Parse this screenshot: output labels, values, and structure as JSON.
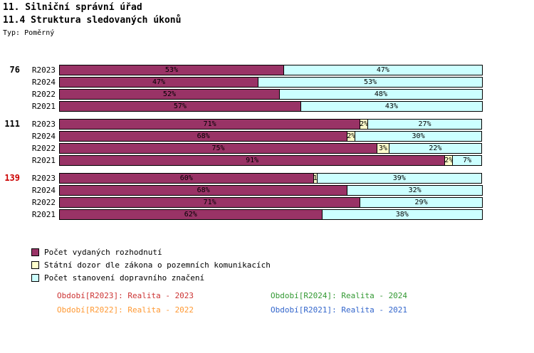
{
  "page": {
    "background": "#FFFFFF"
  },
  "chart_data": {
    "type": "bar",
    "orientation": "horizontal",
    "stacked": true,
    "unit": "%",
    "title": "11. Silniční správní úřad",
    "subtitle": "11.4 Struktura sledovaných úkonů",
    "note": "Typ: Poměrný",
    "xlim": [
      0,
      100
    ],
    "grid": false,
    "legend_position": "bottom-left",
    "series": [
      {
        "name": "Počet vydaných rozhodnutí",
        "color": "#993366"
      },
      {
        "name": "Státní dozor dle zákona o pozemních komunikacích",
        "color": "#FFFFCC"
      },
      {
        "name": "Počet stanovení dopravního značení",
        "color": "#CCFFFF"
      }
    ],
    "groups": [
      {
        "label": "76",
        "label_color": "#000000",
        "rows": [
          {
            "period": "R2023",
            "values": [
              53,
              0,
              47
            ],
            "labels": [
              "53%",
              "",
              "47%"
            ]
          },
          {
            "period": "R2024",
            "values": [
              47,
              0,
              53
            ],
            "labels": [
              "47%",
              "",
              "53%"
            ]
          },
          {
            "period": "R2022",
            "values": [
              52,
              0,
              48
            ],
            "labels": [
              "52%",
              "",
              "48%"
            ]
          },
          {
            "period": "R2021",
            "values": [
              57,
              0,
              43
            ],
            "labels": [
              "57%",
              "",
              "43%"
            ]
          }
        ]
      },
      {
        "label": "111",
        "label_color": "#000000",
        "rows": [
          {
            "period": "R2023",
            "values": [
              71,
              2,
              27
            ],
            "labels": [
              "71%",
              "2%",
              "27%"
            ]
          },
          {
            "period": "R2024",
            "values": [
              68,
              2,
              30
            ],
            "labels": [
              "68%",
              "2%",
              "30%"
            ]
          },
          {
            "period": "R2022",
            "values": [
              75,
              3,
              22
            ],
            "labels": [
              "75%",
              "3%",
              "22%"
            ]
          },
          {
            "period": "R2021",
            "values": [
              91,
              2,
              7
            ],
            "labels": [
              "91%",
              "2%",
              "7%"
            ]
          }
        ]
      },
      {
        "label": "139",
        "label_color": "#CC0000",
        "rows": [
          {
            "period": "R2023",
            "values": [
              60,
              1,
              39
            ],
            "labels": [
              "60%",
              "1",
              "39%"
            ]
          },
          {
            "period": "R2024",
            "values": [
              68,
              0,
              32
            ],
            "labels": [
              "68%",
              "",
              "32%"
            ]
          },
          {
            "period": "R2022",
            "values": [
              71,
              0,
              29
            ],
            "labels": [
              "71%",
              "",
              "29%"
            ]
          },
          {
            "period": "R2021",
            "values": [
              62,
              0,
              38
            ],
            "labels": [
              "62%",
              "",
              "38%"
            ]
          }
        ]
      }
    ],
    "annotations": [
      {
        "text": "Období[R2023]: Realita - 2023",
        "color": "#CC3333"
      },
      {
        "text": "Období[R2024]: Realita - 2024",
        "color": "#339933"
      },
      {
        "text": "Období[R2022]: Realita - 2022",
        "color": "#FF9933"
      },
      {
        "text": "Období[R2021]: Realita - 2021",
        "color": "#3366CC"
      }
    ]
  }
}
